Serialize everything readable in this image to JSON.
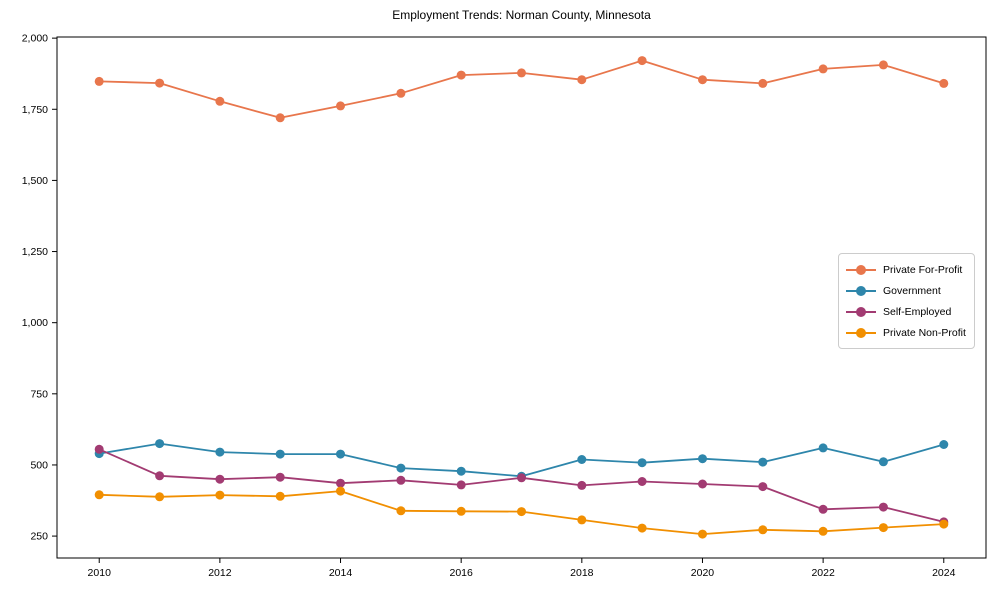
{
  "title": "Employment Trends: Norman County, Minnesota",
  "chart_data": {
    "type": "line",
    "title": "Employment Trends: Norman County, Minnesota",
    "xlabel": "",
    "ylabel": "",
    "x": [
      2010,
      2011,
      2012,
      2013,
      2014,
      2015,
      2016,
      2017,
      2018,
      2019,
      2020,
      2021,
      2022,
      2023,
      2024
    ],
    "series": [
      {
        "name": "Private For-Profit",
        "color": "#E8764C",
        "values": [
          1848,
          1842,
          1778,
          1720,
          1762,
          1806,
          1870,
          1878,
          1854,
          1921,
          1854,
          1841,
          1892,
          1906,
          1841
        ]
      },
      {
        "name": "Government",
        "color": "#2E86AB",
        "values": [
          540,
          575,
          545,
          538,
          538,
          489,
          478,
          460,
          519,
          508,
          522,
          510,
          560,
          511,
          572
        ]
      },
      {
        "name": "Self-Employed",
        "color": "#A23B72",
        "values": [
          555,
          462,
          450,
          457,
          436,
          446,
          430,
          455,
          428,
          442,
          433,
          424,
          344,
          352,
          300
        ]
      },
      {
        "name": "Private Non-Profit",
        "color": "#F18F01",
        "values": [
          395,
          388,
          394,
          390,
          408,
          339,
          337,
          336,
          307,
          278,
          257,
          272,
          267,
          280,
          292
        ]
      }
    ],
    "xticks": [
      2010,
      2012,
      2014,
      2016,
      2018,
      2020,
      2022,
      2024
    ],
    "xtick_labels": [
      "2010",
      "2012",
      "2014",
      "2016",
      "2018",
      "2020",
      "2022",
      "2024"
    ],
    "yticks": [
      250,
      500,
      750,
      1000,
      1250,
      1500,
      1750,
      2000
    ],
    "ytick_labels": [
      "250",
      "500",
      "750",
      "1,000",
      "1,250",
      "1,500",
      "1,750",
      "2,000"
    ],
    "xlim": [
      2009.3,
      2024.7
    ],
    "ylim": [
      173,
      2004
    ],
    "grid": false,
    "marker": "circle",
    "legend_position": "center right"
  }
}
